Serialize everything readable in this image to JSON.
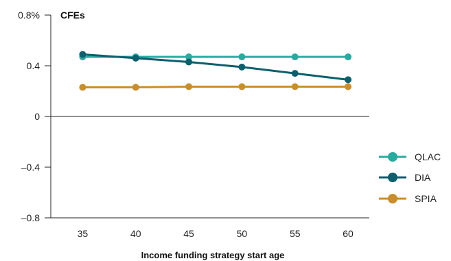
{
  "chart_data": {
    "type": "line",
    "title": "CFEs",
    "xlabel": "Income funding strategy start age",
    "ylabel": "",
    "x": [
      35,
      40,
      45,
      50,
      55,
      60
    ],
    "x_tick_labels": [
      "35",
      "40",
      "45",
      "50",
      "55",
      "60"
    ],
    "xlim": [
      32,
      62
    ],
    "ylim": [
      -0.8,
      0.8
    ],
    "y_ticks": [
      0.8,
      0.4,
      0,
      -0.4,
      -0.8
    ],
    "y_tick_labels": [
      "0.8%",
      "0.4",
      "0",
      "–0.4",
      "–0.8"
    ],
    "grid": false,
    "legend_position": "right",
    "series": [
      {
        "name": "QLAC",
        "color": "#27aba0",
        "values": [
          0.47,
          0.47,
          0.47,
          0.47,
          0.47,
          0.47
        ]
      },
      {
        "name": "DIA",
        "color": "#0c5f6d",
        "values": [
          0.49,
          0.46,
          0.43,
          0.39,
          0.34,
          0.29
        ]
      },
      {
        "name": "SPIA",
        "color": "#c98d2a",
        "values": [
          0.23,
          0.23,
          0.235,
          0.235,
          0.235,
          0.235
        ]
      }
    ]
  }
}
